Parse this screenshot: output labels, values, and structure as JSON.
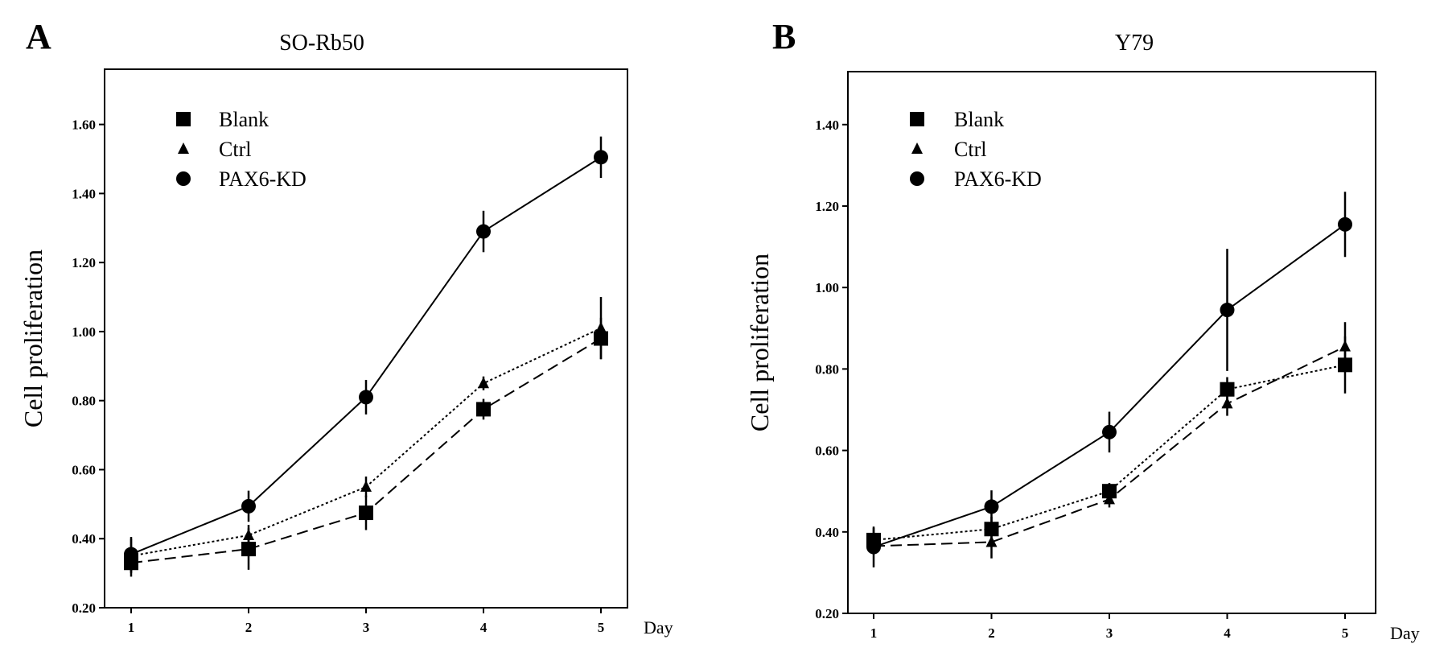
{
  "chart_data": [
    {
      "type": "line",
      "panel_label": "A",
      "title": "SO-Rb50",
      "xlabel": "Day",
      "ylabel": "Cell proliferation",
      "x": [
        1,
        2,
        3,
        4,
        5
      ],
      "x_ticks": [
        "1",
        "2",
        "3",
        "4",
        "5"
      ],
      "y_ticks": [
        "0.20",
        "0.40",
        "0.60",
        "0.80",
        "1.00",
        "1.20",
        "1.40",
        "1.60"
      ],
      "ylim": [
        0.2,
        1.76
      ],
      "grid": false,
      "legend_position": "top-left",
      "series": [
        {
          "name": "Blank",
          "marker": "square",
          "dash": "dashed",
          "values": [
            0.33,
            0.37,
            0.475,
            0.775,
            0.98
          ],
          "errors": [
            0.04,
            0.06,
            0.05,
            0.03,
            0.06
          ]
        },
        {
          "name": "Ctrl",
          "marker": "triangle",
          "dash": "dotted",
          "values": [
            0.35,
            0.41,
            0.55,
            0.85,
            1.01
          ],
          "errors": [
            0.05,
            0.03,
            0.03,
            0.02,
            0.09
          ]
        },
        {
          "name": "PAX6-KD",
          "marker": "circle",
          "dash": "solid",
          "values": [
            0.355,
            0.494,
            0.81,
            1.29,
            1.505
          ],
          "errors": [
            0.05,
            0.045,
            0.05,
            0.06,
            0.06
          ]
        }
      ]
    },
    {
      "type": "line",
      "panel_label": "B",
      "title": "Y79",
      "xlabel": "Day",
      "ylabel": "Cell proliferation",
      "x": [
        1,
        2,
        3,
        4,
        5
      ],
      "x_ticks": [
        "1",
        "2",
        "3",
        "4",
        "5"
      ],
      "y_ticks": [
        "0.20",
        "0.40",
        "0.60",
        "0.80",
        "1.00",
        "1.20",
        "1.40"
      ],
      "ylim": [
        0.2,
        1.53
      ],
      "grid": false,
      "legend_position": "top-left",
      "series": [
        {
          "name": "Blank",
          "marker": "square",
          "dash": "dotted",
          "values": [
            0.38,
            0.407,
            0.5,
            0.75,
            0.81
          ],
          "errors": [
            0.03,
            0.03,
            0.02,
            0.03,
            0.07
          ]
        },
        {
          "name": "Ctrl",
          "marker": "triangle",
          "dash": "dashed",
          "values": [
            0.365,
            0.375,
            0.48,
            0.715,
            0.855
          ],
          "errors": [
            0.02,
            0.04,
            0.02,
            0.03,
            0.06
          ]
        },
        {
          "name": "PAX6-KD",
          "marker": "circle",
          "dash": "solid",
          "values": [
            0.363,
            0.462,
            0.645,
            0.945,
            1.155
          ],
          "errors": [
            0.05,
            0.04,
            0.05,
            0.15,
            0.08
          ]
        }
      ]
    }
  ]
}
